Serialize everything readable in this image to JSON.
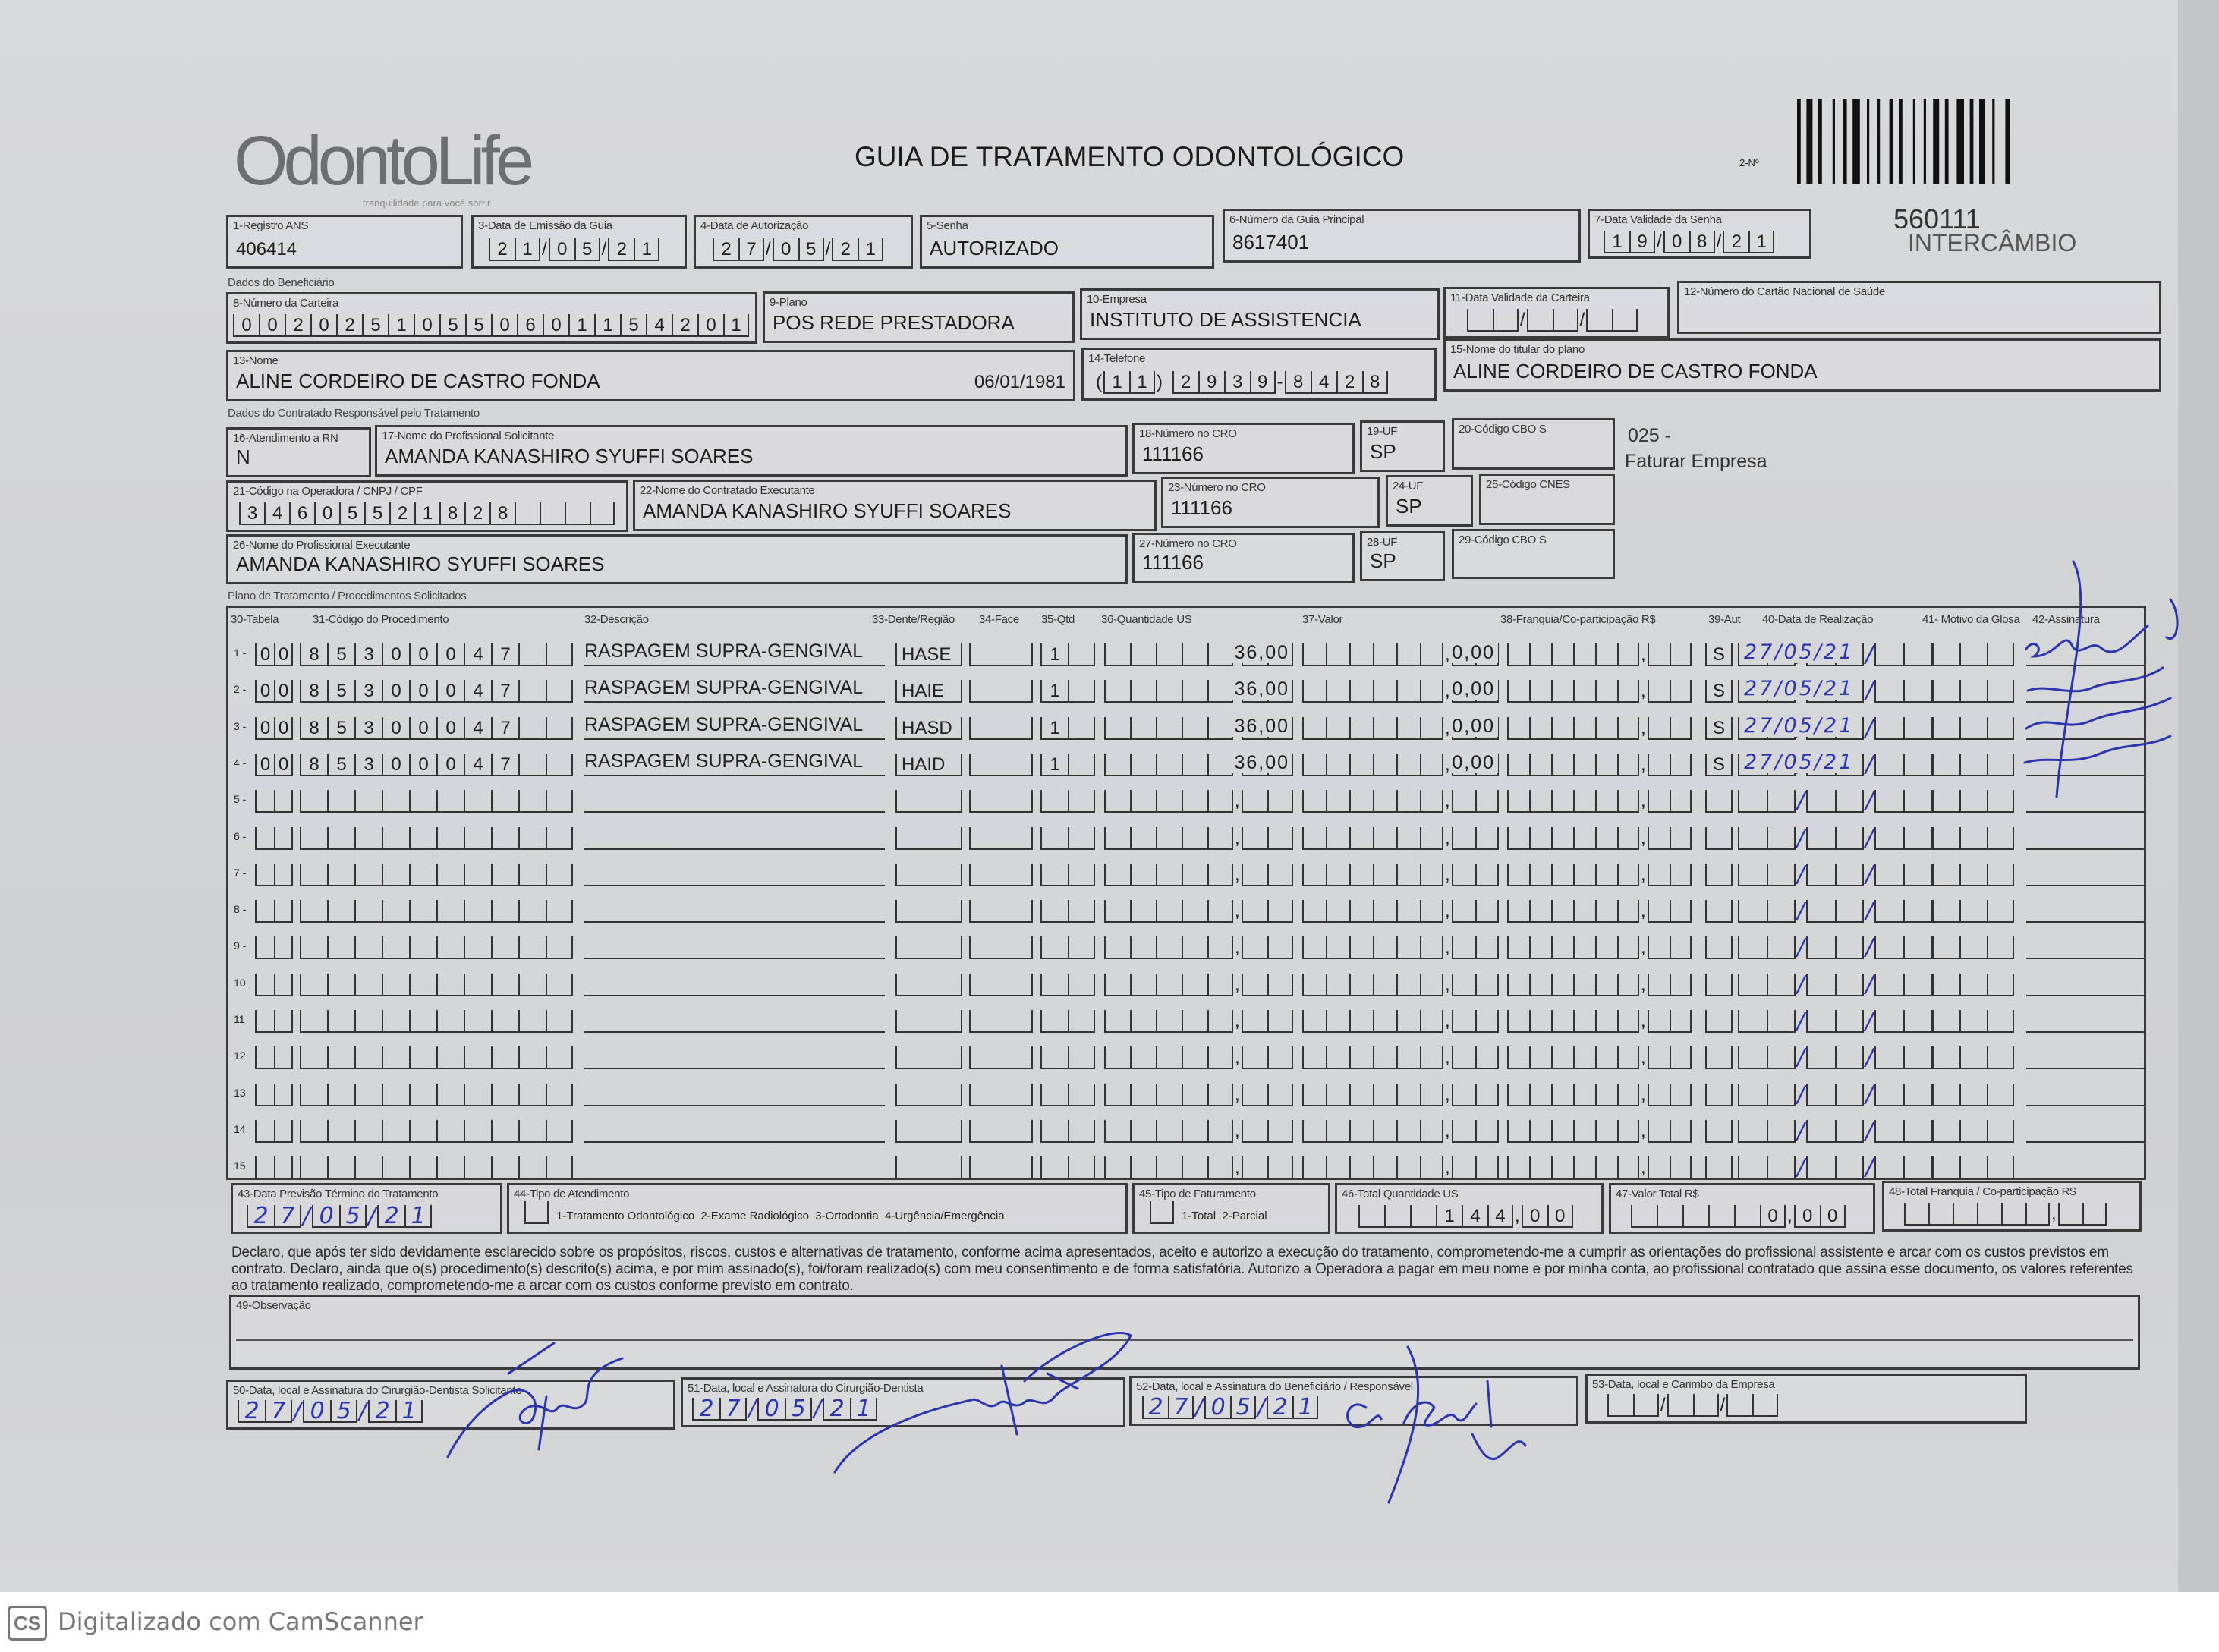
{
  "header": {
    "logo": "OdontoLife",
    "logo_tagline": "tranquilidade para você sorrir",
    "title": "GUIA DE TRATAMENTO ODONTOLÓGICO",
    "guide_no_label": "2-Nº",
    "code": "560111",
    "type": "INTERCÂMBIO"
  },
  "fields": {
    "registro_ans": {
      "label": "1-Registro ANS",
      "value": "406414"
    },
    "data_emissao": {
      "label": "3-Data de Emissão da Guia",
      "value": "21/05/21"
    },
    "data_autorizacao": {
      "label": "4-Data de Autorização",
      "value": "27/05/21"
    },
    "senha": {
      "label": "5-Senha",
      "value": "AUTORIZADO"
    },
    "guia_principal": {
      "label": "6-Número da Guia Principal",
      "value": "8617401"
    },
    "validade_senha": {
      "label": "7-Data Validade da Senha",
      "value": "19/08/21"
    },
    "carteira": {
      "label": "8-Número da Carteira",
      "value": "00202510550601154201"
    },
    "plano": {
      "label": "9-Plano",
      "value": "POS REDE PRESTADORA"
    },
    "empresa": {
      "label": "10-Empresa",
      "value": "INSTITUTO DE ASSISTENCIA"
    },
    "validade_carteira": {
      "label": "11-Data Validade da Carteira",
      "value": ""
    },
    "cartao_saude": {
      "label": "12-Número do Cartão Nacional de Saúde",
      "value": ""
    },
    "nome": {
      "label": "13-Nome",
      "value": "ALINE CORDEIRO DE CASTRO FONDA",
      "birth": "06/01/1981"
    },
    "telefone": {
      "label": "14-Telefone",
      "value": "(11) 2939-8428"
    },
    "titular": {
      "label": "15-Nome do titular do plano",
      "value": "ALINE CORDEIRO DE CASTRO FONDA"
    },
    "atendimento_rn": {
      "label": "16-Atendimento a RN",
      "value": "N"
    },
    "prof_solicitante": {
      "label": "17-Nome do Profissional Solicitante",
      "value": "AMANDA KANASHIRO SYUFFI SOARES"
    },
    "cro_18": {
      "label": "18-Número no CRO",
      "value": "111166"
    },
    "uf_19": {
      "label": "19-UF",
      "value": "SP"
    },
    "cbo_20": {
      "label": "20-Código CBO S",
      "value": ""
    },
    "codigo_operadora": {
      "label": "21-Código na Operadora / CNPJ / CPF",
      "value": "34605521828"
    },
    "contratado_exec": {
      "label": "22-Nome do Contratado Executante",
      "value": "AMANDA KANASHIRO SYUFFI SOARES"
    },
    "cro_23": {
      "label": "23-Número no CRO",
      "value": "111166"
    },
    "uf_24": {
      "label": "24-UF",
      "value": "SP"
    },
    "cnes_25": {
      "label": "25-Código CNES",
      "value": ""
    },
    "prof_exec": {
      "label": "26-Nome do Profissional Executante",
      "value": "AMANDA KANASHIRO SYUFFI SOARES"
    },
    "cro_27": {
      "label": "27-Número no CRO",
      "value": "111166"
    },
    "uf_28": {
      "label": "28-UF",
      "value": "SP"
    },
    "cbo_29": {
      "label": "29-Código CBO S",
      "value": ""
    }
  },
  "side_note": {
    "code": "025 -",
    "text": "Faturar Empresa"
  },
  "sections": {
    "beneficiario": "Dados do Beneficiário",
    "contratado": "Dados do Contratado Responsável pelo Tratamento",
    "plano": "Plano de Tratamento / Procedimentos Solicitados"
  },
  "table": {
    "headers": [
      "30-Tabela",
      "31-Código do Procedimento",
      "32-Descrição",
      "33-Dente/Região",
      "34-Face",
      "35-Qtd",
      "36-Quantidade US",
      "37-Valor",
      "38-Franquia/Co-participação R$",
      "39-Aut",
      "40-Data de Realização",
      "41- Motivo da Glosa",
      "42-Assinatura"
    ],
    "rows": [
      {
        "n": "1 -",
        "tabela": "00",
        "codigo": "85300047",
        "descricao": "RASPAGEM SUPRA-GENGIVAL",
        "dente": "HASE",
        "face": "",
        "qtd": "1",
        "us": "36,00",
        "valor": "0,00",
        "franquia": "",
        "aut": "S",
        "data": "27/05/21",
        "glosa": ""
      },
      {
        "n": "2 -",
        "tabela": "00",
        "codigo": "85300047",
        "descricao": "RASPAGEM SUPRA-GENGIVAL",
        "dente": "HAIE",
        "face": "",
        "qtd": "1",
        "us": "36,00",
        "valor": "0,00",
        "franquia": "",
        "aut": "S",
        "data": "27/05/21",
        "glosa": ""
      },
      {
        "n": "3 -",
        "tabela": "00",
        "codigo": "85300047",
        "descricao": "RASPAGEM SUPRA-GENGIVAL",
        "dente": "HASD",
        "face": "",
        "qtd": "1",
        "us": "36,00",
        "valor": "0,00",
        "franquia": "",
        "aut": "S",
        "data": "27/05/21",
        "glosa": ""
      },
      {
        "n": "4 -",
        "tabela": "00",
        "codigo": "85300047",
        "descricao": "RASPAGEM SUPRA-GENGIVAL",
        "dente": "HAID",
        "face": "",
        "qtd": "1",
        "us": "36,00",
        "valor": "0,00",
        "franquia": "",
        "aut": "S",
        "data": "27/05/21",
        "glosa": ""
      },
      {
        "n": "5 -"
      },
      {
        "n": "6 -"
      },
      {
        "n": "7 -"
      },
      {
        "n": "8 -"
      },
      {
        "n": "9 -"
      },
      {
        "n": "10"
      },
      {
        "n": "11"
      },
      {
        "n": "12"
      },
      {
        "n": "13"
      },
      {
        "n": "14"
      },
      {
        "n": "15"
      }
    ]
  },
  "footer_fields": {
    "previsao": {
      "label": "43-Data Previsão Término do Tratamento",
      "value": "27/05/21"
    },
    "tipo_atendimento": {
      "label": "44-Tipo de Atendimento",
      "options": "1-Tratamento Odontológico  2-Exame Radiológico  3-Ortodontia  4-Urgência/Emergência"
    },
    "tipo_faturamento": {
      "label": "45-Tipo de Faturamento",
      "options": "1-Total  2-Parcial"
    },
    "total_us": {
      "label": "46-Total Quantidade US",
      "value": "144,00"
    },
    "valor_total": {
      "label": "47-Valor Total R$",
      "value": "0,00"
    },
    "total_franquia": {
      "label": "48-Total Franquia / Co-participação R$",
      "value": ""
    }
  },
  "declaration": "Declaro, que após ter sido devidamente esclarecido sobre os propósitos, riscos, custos e alternativas de tratamento, conforme acima apresentados, aceito e autorizo a execução do tratamento, comprometendo-me a cumprir as orientações do profissional assistente e arcar com os custos previstos em contrato. Declaro, ainda que o(s) procedimento(s) descrito(s) acima, e por mim assinado(s), foi/foram realizado(s) com meu consentimento e de forma satisfatória. Autorizo a Operadora a pagar em meu nome e por minha conta, ao profissional contratado que assina esse documento, os valores referentes ao tratamento realizado, comprometendo-me a arcar com os custos conforme previsto em contrato.",
  "observacao": {
    "label": "49-Observação",
    "value": ""
  },
  "signatures": {
    "s50": {
      "label": "50-Data, local e Assinatura do Cirurgião-Dentista Solicitante",
      "date": "27/05/21"
    },
    "s51": {
      "label": "51-Data, local e Assinatura do Cirurgião-Dentista",
      "date": "27/05/21"
    },
    "s52": {
      "label": "52-Data, local e Assinatura do Beneficiário / Responsável",
      "date": "27/05/21"
    },
    "s53": {
      "label": "53-Data, local e Carimbo da Empresa",
      "date": ""
    }
  },
  "scanner": {
    "badge": "CS",
    "text": "Digitalizado com CamScanner"
  },
  "colors": {
    "ink": "#2b35b0",
    "paper": "#d3d4d6",
    "print": "#222222"
  }
}
